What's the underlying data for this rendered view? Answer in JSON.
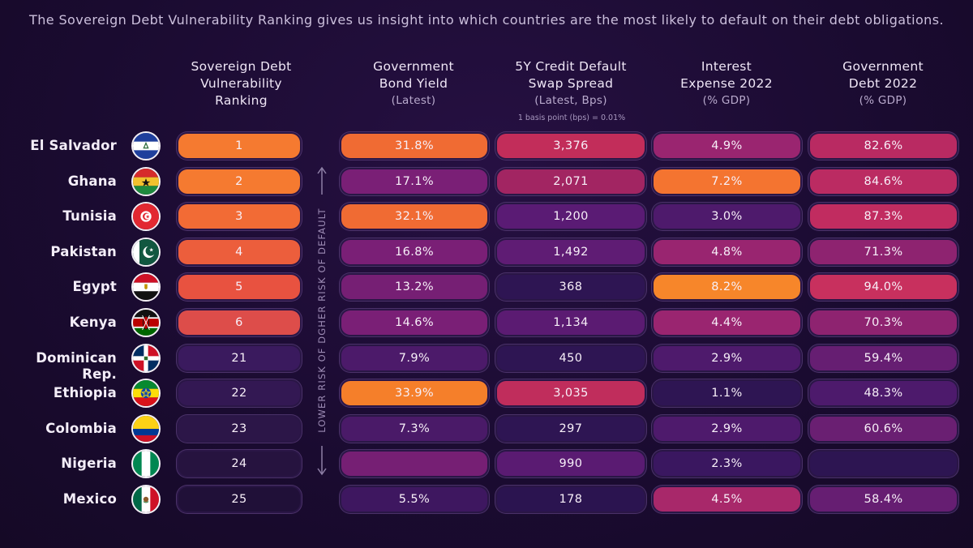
{
  "subtitle": "The Sovereign Debt Vulnerability Ranking gives us insight into which countries are the most likely to default on their debt obligations.",
  "headers": {
    "rank": {
      "line1": "Sovereign Debt",
      "line2": "Vulnerability",
      "line3": "Ranking"
    },
    "bond": {
      "line1": "Government",
      "line2": "Bond Yield",
      "sub": "(Latest)"
    },
    "cds": {
      "line1": "5Y Credit Default",
      "line2": "Swap Spread",
      "sub": "(Latest, Bps)"
    },
    "interest": {
      "line1": "Interest",
      "line2": "Expense 2022",
      "sub": "(% GDP)"
    },
    "debt": {
      "line1": "Government",
      "line2": "Debt 2022",
      "sub": "(% GDP)"
    }
  },
  "note": "1 basis point (bps) = 0.01%",
  "side_label": "LOWER RISK OF DGHER RISK OF DEFAULT",
  "colors": {
    "rank": [
      "#f57a30",
      "#f57a30",
      "#f26b35",
      "#ec5e3c",
      "#e85240",
      "#dd4d4a",
      "#3a1a5e",
      "#331853",
      "#2c1648",
      "#26133f",
      "#201038"
    ],
    "bond": [
      "#f06b33",
      "#7a1f76",
      "#f06b33",
      "#7a1f76",
      "#761f74",
      "#7a1f76",
      "#4c1a6a",
      "#f57f2a",
      "#4a1a68",
      "#761f74",
      "#3e1760"
    ],
    "cds": [
      "#c22d5a",
      "#a22562",
      "#5a1b74",
      "#5f1c74",
      "#2e1553",
      "#5b1b72",
      "#2e1553",
      "#c02d5c",
      "#2e1553",
      "#5a1b72",
      "#2b1450"
    ],
    "interest": [
      "#9a2570",
      "#f47430",
      "#4e1a6c",
      "#992570",
      "#f7862a",
      "#9a2570",
      "#4e1a6c",
      "#2e1553",
      "#4e1a6c",
      "#3a1760",
      "#a8286a"
    ],
    "debt": [
      "#b92a62",
      "#bb2b62",
      "#c12c60",
      "#8e2370",
      "#c8305e",
      "#8e2370",
      "#661e72",
      "#4d1a6c",
      "#6a1f72",
      "#2d1552",
      "#661e72"
    ]
  },
  "chart_data": {
    "type": "table",
    "title": "The Sovereign Debt Vulnerability Ranking gives us insight into which countries are the most likely to default on their debt obligations.",
    "columns": [
      "Sovereign Debt Vulnerability Ranking",
      "Government Bond Yield (Latest)",
      "5Y Credit Default Swap Spread (Latest, Bps)",
      "Interest Expense 2022 (% GDP)",
      "Government Debt 2022 (% GDP)"
    ],
    "rows": [
      {
        "country": "El Salvador",
        "flag": "el-salvador-flag",
        "rank": "1",
        "bond": "31.8%",
        "cds": "3,376",
        "interest": "4.9%",
        "debt": "82.6%"
      },
      {
        "country": "Ghana",
        "flag": "ghana-flag",
        "rank": "2",
        "bond": "17.1%",
        "cds": "2,071",
        "interest": "7.2%",
        "debt": "84.6%"
      },
      {
        "country": "Tunisia",
        "flag": "tunisia-flag",
        "rank": "3",
        "bond": "32.1%",
        "cds": "1,200",
        "interest": "3.0%",
        "debt": "87.3%"
      },
      {
        "country": "Pakistan",
        "flag": "pakistan-flag",
        "rank": "4",
        "bond": "16.8%",
        "cds": "1,492",
        "interest": "4.8%",
        "debt": "71.3%"
      },
      {
        "country": "Egypt",
        "flag": "egypt-flag",
        "rank": "5",
        "bond": "13.2%",
        "cds": "368",
        "interest": "8.2%",
        "debt": "94.0%"
      },
      {
        "country": "Kenya",
        "flag": "kenya-flag",
        "rank": "6",
        "bond": "14.6%",
        "cds": "1,134",
        "interest": "4.4%",
        "debt": "70.3%"
      },
      {
        "country": "Dominican Rep.",
        "flag": "dominican-republic-flag",
        "rank": "21",
        "bond": "7.9%",
        "cds": "450",
        "interest": "2.9%",
        "debt": "59.4%"
      },
      {
        "country": "Ethiopia",
        "flag": "ethiopia-flag",
        "rank": "22",
        "bond": "33.9%",
        "cds": "3,035",
        "interest": "1.1%",
        "debt": "48.3%"
      },
      {
        "country": "Colombia",
        "flag": "colombia-flag",
        "rank": "23",
        "bond": "7.3%",
        "cds": "297",
        "interest": "2.9%",
        "debt": "60.6%"
      },
      {
        "country": "Nigeria",
        "flag": "nigeria-flag",
        "rank": "24",
        "bond": "",
        "cds": "990",
        "interest": "2.3%",
        "debt": ""
      },
      {
        "country": "Mexico",
        "flag": "mexico-flag",
        "rank": "25",
        "bond": "5.5%",
        "cds": "178",
        "interest": "4.5%",
        "debt": "58.4%"
      }
    ]
  }
}
